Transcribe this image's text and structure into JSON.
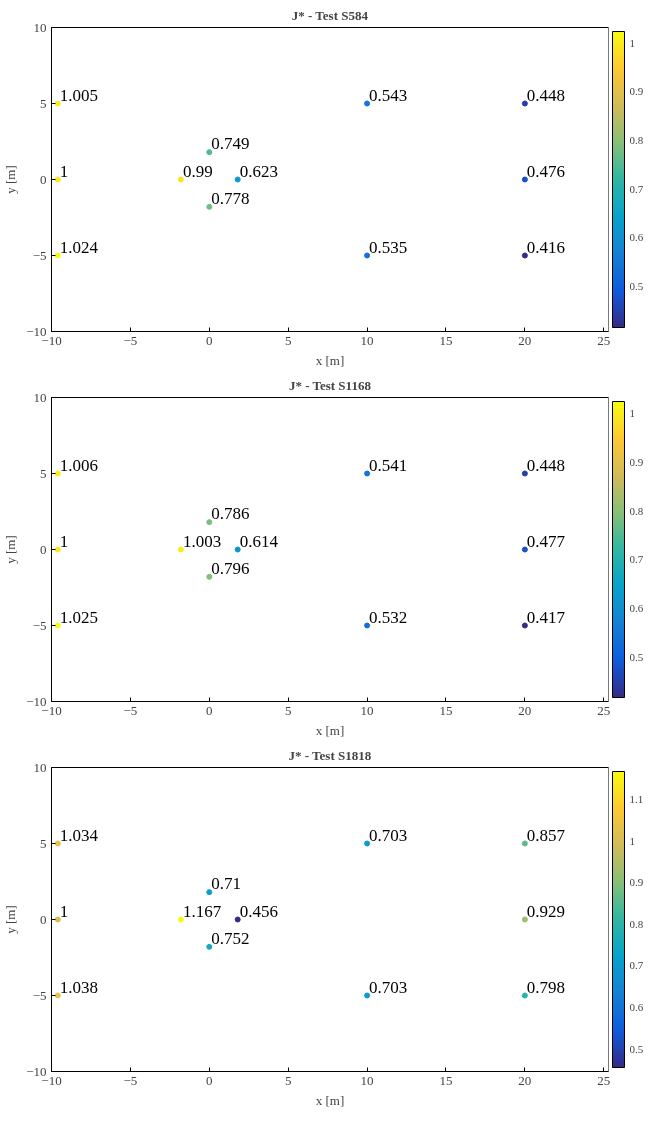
{
  "chart_data": [
    {
      "type": "scatter",
      "title": "J* - Test S584",
      "xlabel": "x [m]",
      "ylabel": "y [m]",
      "x": [
        -9.6,
        -9.6,
        -9.6,
        -1.8,
        0,
        1.8,
        0,
        10,
        10,
        20,
        20,
        20
      ],
      "values": [
        5,
        0,
        -5,
        0,
        1.8,
        0,
        -1.8,
        5,
        -5,
        5,
        0,
        -5
      ],
      "cvalues": [
        1.005,
        1,
        1.024,
        0.99,
        0.749,
        0.623,
        0.778,
        0.543,
        0.535,
        0.448,
        0.476,
        0.416
      ],
      "annotations": [
        {
          "text": "1.005",
          "x": -9.6,
          "y": 5
        },
        {
          "text": "1",
          "x": -9.6,
          "y": 0
        },
        {
          "text": "1.024",
          "x": -9.6,
          "y": -5
        },
        {
          "text": "0.99",
          "x": -1.8,
          "y": 0
        },
        {
          "text": "0.749",
          "x": 0,
          "y": 1.8
        },
        {
          "text": "0.623",
          "x": 1.8,
          "y": 0
        },
        {
          "text": "0.778",
          "x": 0,
          "y": -1.8
        },
        {
          "text": "0.543",
          "x": 10,
          "y": 5
        },
        {
          "text": "0.535",
          "x": 10,
          "y": -5
        },
        {
          "text": "0.448",
          "x": 20,
          "y": 5
        },
        {
          "text": "0.476",
          "x": 20,
          "y": 0
        },
        {
          "text": "0.416",
          "x": 20,
          "y": -5
        }
      ],
      "clim": [
        0.416,
        1.024
      ],
      "cticks": [
        0.5,
        0.6,
        0.7,
        0.8,
        0.9,
        1
      ],
      "xlim": [
        -10,
        25.3
      ],
      "ylim": [
        -10,
        10
      ],
      "xticks": [
        -10,
        -5,
        0,
        5,
        10,
        15,
        20,
        25
      ],
      "yticks": [
        -10,
        -5,
        0,
        5,
        10
      ],
      "grid": false,
      "marker": "circle"
    },
    {
      "type": "scatter",
      "title": "J* - Test S1168",
      "xlabel": "x [m]",
      "ylabel": "y [m]",
      "x": [
        -9.6,
        -9.6,
        -9.6,
        -1.8,
        0,
        1.8,
        0,
        10,
        10,
        20,
        20,
        20
      ],
      "values": [
        5,
        0,
        -5,
        0,
        1.8,
        0,
        -1.8,
        5,
        -5,
        5,
        0,
        -5
      ],
      "cvalues": [
        1.006,
        1,
        1.025,
        1.003,
        0.786,
        0.614,
        0.796,
        0.541,
        0.532,
        0.448,
        0.477,
        0.417
      ],
      "annotations": [
        {
          "text": "1.006",
          "x": -9.6,
          "y": 5
        },
        {
          "text": "1",
          "x": -9.6,
          "y": 0
        },
        {
          "text": "1.025",
          "x": -9.6,
          "y": -5
        },
        {
          "text": "1.003",
          "x": -1.8,
          "y": 0
        },
        {
          "text": "0.786",
          "x": 0,
          "y": 1.8
        },
        {
          "text": "0.614",
          "x": 1.8,
          "y": 0
        },
        {
          "text": "0.796",
          "x": 0,
          "y": -1.8
        },
        {
          "text": "0.541",
          "x": 10,
          "y": 5
        },
        {
          "text": "0.532",
          "x": 10,
          "y": -5
        },
        {
          "text": "0.448",
          "x": 20,
          "y": 5
        },
        {
          "text": "0.477",
          "x": 20,
          "y": 0
        },
        {
          "text": "0.417",
          "x": 20,
          "y": -5
        }
      ],
      "clim": [
        0.417,
        1.025
      ],
      "cticks": [
        0.5,
        0.6,
        0.7,
        0.8,
        0.9,
        1
      ],
      "xlim": [
        -10,
        25.3
      ],
      "ylim": [
        -10,
        10
      ],
      "xticks": [
        -10,
        -5,
        0,
        5,
        10,
        15,
        20,
        25
      ],
      "yticks": [
        -10,
        -5,
        0,
        5,
        10
      ],
      "grid": false,
      "marker": "circle"
    },
    {
      "type": "scatter",
      "title": "J* - Test S1818",
      "xlabel": "x [m]",
      "ylabel": "y [m]",
      "x": [
        -9.6,
        -9.6,
        -9.6,
        -1.8,
        0,
        1.8,
        0,
        10,
        10,
        20,
        20,
        20
      ],
      "values": [
        5,
        0,
        -5,
        0,
        1.8,
        0,
        -1.8,
        5,
        -5,
        5,
        0,
        -5
      ],
      "cvalues": [
        1.034,
        1,
        1.038,
        1.167,
        0.71,
        0.456,
        0.752,
        0.703,
        0.703,
        0.857,
        0.929,
        0.798
      ],
      "annotations": [
        {
          "text": "1.034",
          "x": -9.6,
          "y": 5
        },
        {
          "text": "1",
          "x": -9.6,
          "y": 0
        },
        {
          "text": "1.038",
          "x": -9.6,
          "y": -5
        },
        {
          "text": "1.167",
          "x": -1.8,
          "y": 0
        },
        {
          "text": "0.71",
          "x": 0,
          "y": 1.8
        },
        {
          "text": "0.456",
          "x": 1.8,
          "y": 0
        },
        {
          "text": "0.752",
          "x": 0,
          "y": -1.8
        },
        {
          "text": "0.703",
          "x": 10,
          "y": 5
        },
        {
          "text": "0.703",
          "x": 10,
          "y": -5
        },
        {
          "text": "0.857",
          "x": 20,
          "y": 5
        },
        {
          "text": "0.929",
          "x": 20,
          "y": 0
        },
        {
          "text": "0.798",
          "x": 20,
          "y": -5
        }
      ],
      "clim": [
        0.456,
        1.167
      ],
      "cticks": [
        0.5,
        0.6,
        0.7,
        0.8,
        0.9,
        1,
        1.1
      ],
      "xlim": [
        -10,
        25.3
      ],
      "ylim": [
        -10,
        10
      ],
      "xticks": [
        -10,
        -5,
        0,
        5,
        10,
        15,
        20,
        25
      ],
      "yticks": [
        -10,
        -5,
        0,
        5,
        10
      ],
      "grid": false,
      "marker": "circle"
    }
  ]
}
